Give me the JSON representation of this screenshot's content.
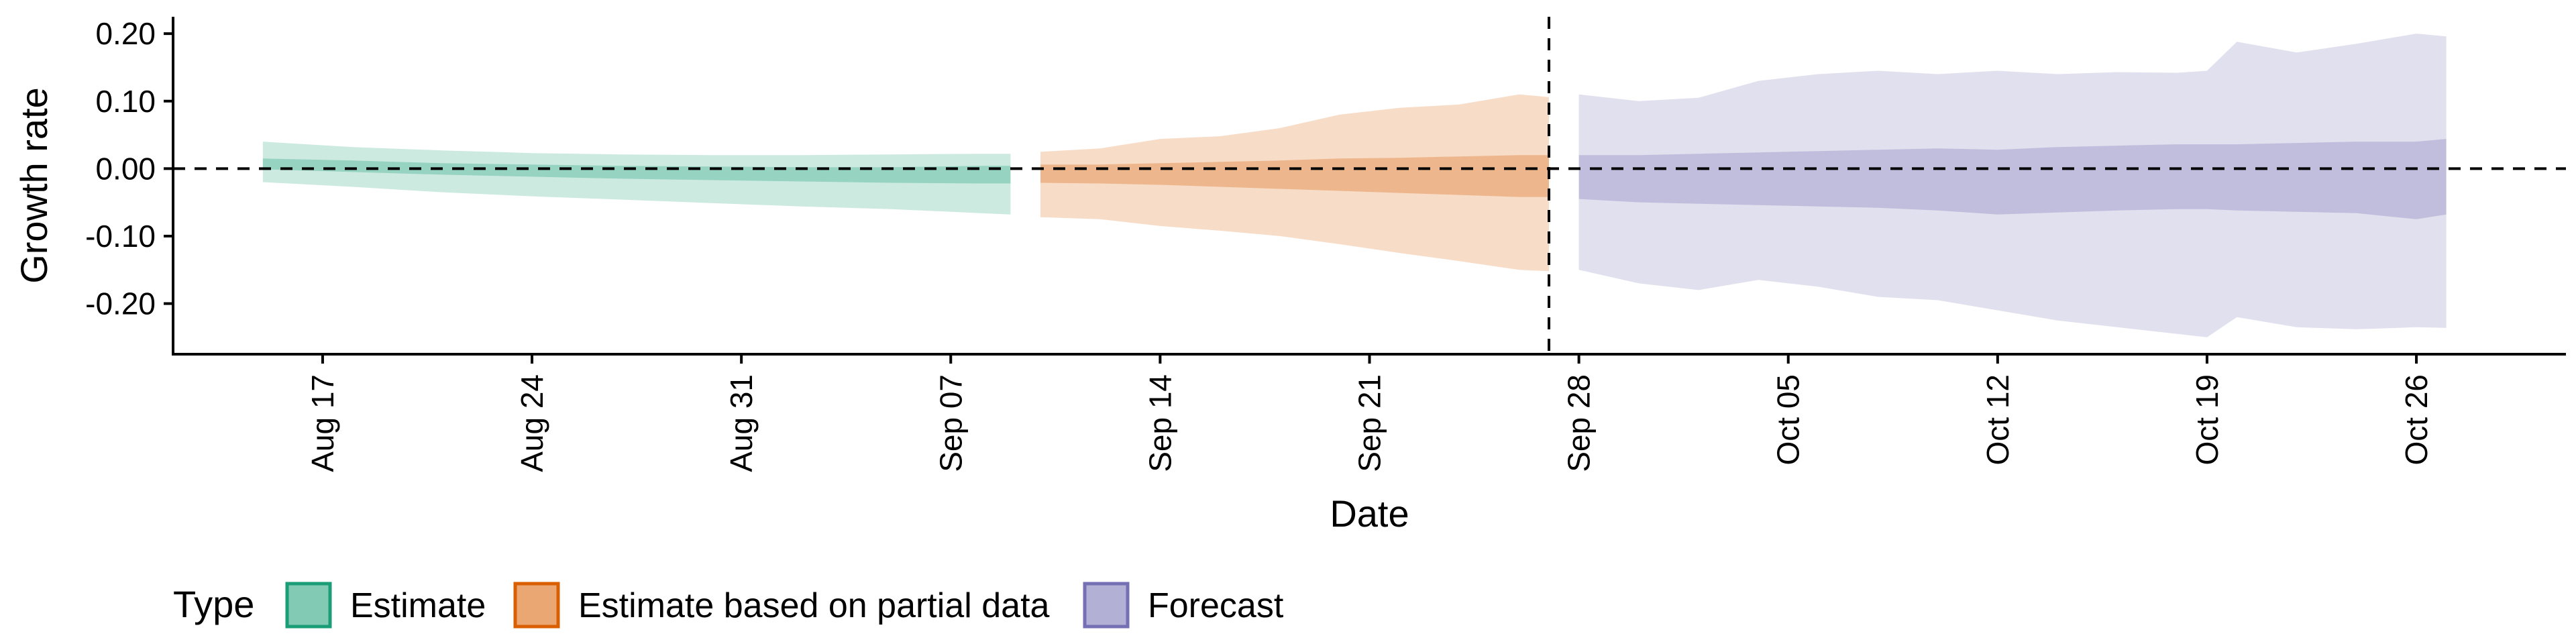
{
  "chart_data": {
    "type": "area",
    "xlabel": "Date",
    "ylabel": "Growth rate",
    "xlim": [
      "2020-08-12",
      "2020-10-31"
    ],
    "ylim": [
      -0.275,
      0.225
    ],
    "x_ticks": [
      "2020-08-17",
      "2020-08-24",
      "2020-08-31",
      "2020-09-07",
      "2020-09-14",
      "2020-09-21",
      "2020-09-28",
      "2020-10-05",
      "2020-10-12",
      "2020-10-19",
      "2020-10-26"
    ],
    "x_tick_labels": [
      "Aug 17",
      "Aug 24",
      "Aug 31",
      "Sep 07",
      "Sep 14",
      "Sep 21",
      "Sep 28",
      "Oct 05",
      "Oct 12",
      "Oct 19",
      "Oct 26"
    ],
    "y_ticks": [
      0.2,
      0.1,
      0.0,
      -0.1,
      -0.2
    ],
    "y_tick_labels": [
      "0.20",
      "0.10",
      "0.00",
      "-0.10",
      "-0.20"
    ],
    "reference_hline": 0.0,
    "reference_vline": "2020-09-27",
    "grid": false,
    "legend": {
      "title": "Type",
      "position": "bottom-left",
      "items": [
        "Estimate",
        "Estimate based on partial data",
        "Forecast"
      ]
    },
    "series": [
      {
        "name": "Estimate",
        "color": "#1b9e77",
        "x": [
          "2020-08-15",
          "2020-08-18",
          "2020-08-21",
          "2020-08-24",
          "2020-08-27",
          "2020-08-30",
          "2020-09-02",
          "2020-09-05",
          "2020-09-08",
          "2020-09-09"
        ],
        "upper90": [
          0.04,
          0.032,
          0.027,
          0.023,
          0.021,
          0.02,
          0.02,
          0.021,
          0.022,
          0.022
        ],
        "upper50": [
          0.015,
          0.012,
          0.008,
          0.006,
          0.004,
          0.003,
          0.002,
          0.002,
          0.004,
          0.004
        ],
        "lower50": [
          -0.001,
          -0.005,
          -0.009,
          -0.012,
          -0.015,
          -0.017,
          -0.019,
          -0.021,
          -0.022,
          -0.022
        ],
        "lower90": [
          -0.02,
          -0.027,
          -0.035,
          -0.041,
          -0.046,
          -0.051,
          -0.056,
          -0.06,
          -0.066,
          -0.068
        ]
      },
      {
        "name": "Estimate based on partial data",
        "color": "#d95f02",
        "x": [
          "2020-09-10",
          "2020-09-12",
          "2020-09-14",
          "2020-09-16",
          "2020-09-18",
          "2020-09-20",
          "2020-09-22",
          "2020-09-24",
          "2020-09-26",
          "2020-09-27"
        ],
        "upper90": [
          0.025,
          0.03,
          0.044,
          0.048,
          0.06,
          0.08,
          0.09,
          0.095,
          0.11,
          0.106
        ],
        "upper50": [
          0.006,
          0.006,
          0.008,
          0.01,
          0.012,
          0.015,
          0.016,
          0.018,
          0.02,
          0.02
        ],
        "lower50": [
          -0.021,
          -0.022,
          -0.024,
          -0.027,
          -0.03,
          -0.033,
          -0.036,
          -0.039,
          -0.042,
          -0.042
        ],
        "lower90": [
          -0.072,
          -0.075,
          -0.085,
          -0.092,
          -0.1,
          -0.112,
          -0.125,
          -0.137,
          -0.15,
          -0.152
        ]
      },
      {
        "name": "Forecast",
        "color": "#7570b3",
        "x": [
          "2020-09-28",
          "2020-09-30",
          "2020-10-02",
          "2020-10-04",
          "2020-10-06",
          "2020-10-08",
          "2020-10-10",
          "2020-10-12",
          "2020-10-14",
          "2020-10-16",
          "2020-10-18",
          "2020-10-19",
          "2020-10-20",
          "2020-10-22",
          "2020-10-24",
          "2020-10-26",
          "2020-10-27"
        ],
        "upper90": [
          0.11,
          0.1,
          0.105,
          0.13,
          0.14,
          0.145,
          0.14,
          0.145,
          0.14,
          0.143,
          0.142,
          0.145,
          0.188,
          0.172,
          0.185,
          0.2,
          0.196
        ],
        "upper50": [
          0.02,
          0.02,
          0.022,
          0.024,
          0.026,
          0.028,
          0.03,
          0.028,
          0.032,
          0.034,
          0.036,
          0.036,
          0.036,
          0.038,
          0.04,
          0.04,
          0.044
        ],
        "lower50": [
          -0.045,
          -0.05,
          -0.052,
          -0.054,
          -0.056,
          -0.058,
          -0.062,
          -0.068,
          -0.065,
          -0.062,
          -0.06,
          -0.06,
          -0.062,
          -0.064,
          -0.066,
          -0.075,
          -0.068
        ],
        "lower90": [
          -0.15,
          -0.17,
          -0.18,
          -0.165,
          -0.175,
          -0.19,
          -0.195,
          -0.21,
          -0.225,
          -0.235,
          -0.245,
          -0.25,
          -0.22,
          -0.235,
          -0.238,
          -0.235,
          -0.236
        ]
      }
    ]
  }
}
